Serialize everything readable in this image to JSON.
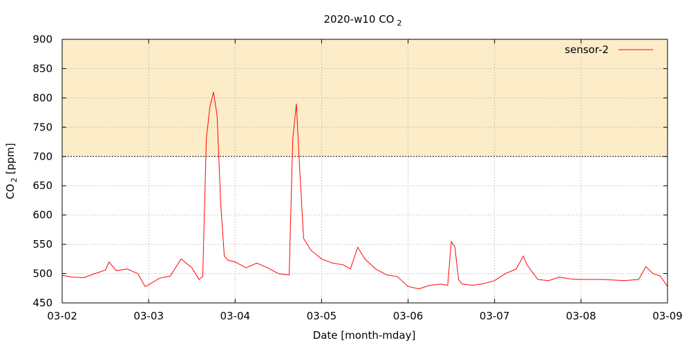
{
  "chart_data": {
    "type": "line",
    "title": "2020-w10 CO",
    "title_subscript": "2",
    "ylabel": "CO",
    "ylabel_subscript": "2",
    "ylabel_suffix": " [ppm]",
    "xlabel": "Date [month-mday]",
    "ylim": [
      450,
      900
    ],
    "yticks": [
      450,
      500,
      550,
      600,
      650,
      700,
      750,
      800,
      850,
      900
    ],
    "xlim": [
      "2020-03-02",
      "2020-03-09"
    ],
    "xticks": [
      "2020-03-02",
      "2020-03-03",
      "2020-03-04",
      "2020-03-05",
      "2020-03-06",
      "2020-03-07",
      "2020-03-08",
      "2020-03-09"
    ],
    "xtick_labels": [
      "03-02",
      "03-03",
      "03-04",
      "03-05",
      "03-06",
      "03-07",
      "03-08",
      "03-09"
    ],
    "threshold": {
      "value": 700,
      "band_color": "#fcecc8",
      "line": "dotted"
    },
    "grid": true,
    "legend": "top-right",
    "series": [
      {
        "name": "sensor-2",
        "color": "#ff0000",
        "points": [
          [
            "2020-03-02T00:00",
            497
          ],
          [
            "2020-03-02T03:00",
            494
          ],
          [
            "2020-03-02T06:00",
            493
          ],
          [
            "2020-03-02T09:00",
            500
          ],
          [
            "2020-03-02T12:00",
            506
          ],
          [
            "2020-03-02T13:00",
            520
          ],
          [
            "2020-03-02T15:00",
            505
          ],
          [
            "2020-03-02T18:00",
            508
          ],
          [
            "2020-03-02T21:00",
            500
          ],
          [
            "2020-03-02T23:00",
            478
          ],
          [
            "2020-03-03T00:00",
            481
          ],
          [
            "2020-03-03T03:00",
            492
          ],
          [
            "2020-03-03T06:00",
            496
          ],
          [
            "2020-03-03T09:00",
            525
          ],
          [
            "2020-03-03T12:00",
            510
          ],
          [
            "2020-03-03T14:00",
            490
          ],
          [
            "2020-03-03T15:00",
            495
          ],
          [
            "2020-03-03T16:00",
            730
          ],
          [
            "2020-03-03T17:00",
            785
          ],
          [
            "2020-03-03T18:00",
            810
          ],
          [
            "2020-03-03T19:00",
            770
          ],
          [
            "2020-03-03T20:00",
            620
          ],
          [
            "2020-03-03T21:00",
            530
          ],
          [
            "2020-03-03T22:00",
            523
          ],
          [
            "2020-03-04T00:00",
            520
          ],
          [
            "2020-03-04T03:00",
            510
          ],
          [
            "2020-03-04T06:00",
            518
          ],
          [
            "2020-03-04T09:00",
            510
          ],
          [
            "2020-03-04T12:00",
            500
          ],
          [
            "2020-03-04T15:00",
            498
          ],
          [
            "2020-03-04T16:00",
            730
          ],
          [
            "2020-03-04T17:00",
            790
          ],
          [
            "2020-03-04T18:00",
            670
          ],
          [
            "2020-03-04T19:00",
            560
          ],
          [
            "2020-03-04T21:00",
            540
          ],
          [
            "2020-03-05T00:00",
            525
          ],
          [
            "2020-03-05T03:00",
            518
          ],
          [
            "2020-03-05T06:00",
            515
          ],
          [
            "2020-03-05T08:00",
            508
          ],
          [
            "2020-03-05T10:00",
            545
          ],
          [
            "2020-03-05T12:00",
            525
          ],
          [
            "2020-03-05T15:00",
            508
          ],
          [
            "2020-03-05T18:00",
            498
          ],
          [
            "2020-03-05T21:00",
            495
          ],
          [
            "2020-03-06T00:00",
            478
          ],
          [
            "2020-03-06T03:00",
            474
          ],
          [
            "2020-03-06T06:00",
            480
          ],
          [
            "2020-03-06T09:00",
            482
          ],
          [
            "2020-03-06T11:00",
            480
          ],
          [
            "2020-03-06T12:00",
            555
          ],
          [
            "2020-03-06T13:00",
            545
          ],
          [
            "2020-03-06T14:00",
            490
          ],
          [
            "2020-03-06T15:00",
            482
          ],
          [
            "2020-03-06T18:00",
            480
          ],
          [
            "2020-03-06T21:00",
            483
          ],
          [
            "2020-03-07T00:00",
            488
          ],
          [
            "2020-03-07T03:00",
            500
          ],
          [
            "2020-03-07T06:00",
            508
          ],
          [
            "2020-03-07T08:00",
            530
          ],
          [
            "2020-03-07T09:00",
            515
          ],
          [
            "2020-03-07T12:00",
            490
          ],
          [
            "2020-03-07T15:00",
            488
          ],
          [
            "2020-03-07T18:00",
            494
          ],
          [
            "2020-03-07T21:00",
            491
          ],
          [
            "2020-03-08T00:00",
            490
          ],
          [
            "2020-03-08T06:00",
            490
          ],
          [
            "2020-03-08T12:00",
            488
          ],
          [
            "2020-03-08T16:00",
            490
          ],
          [
            "2020-03-08T18:00",
            512
          ],
          [
            "2020-03-08T20:00",
            500
          ],
          [
            "2020-03-08T22:00",
            496
          ],
          [
            "2020-03-09T00:00",
            478
          ]
        ]
      }
    ]
  }
}
